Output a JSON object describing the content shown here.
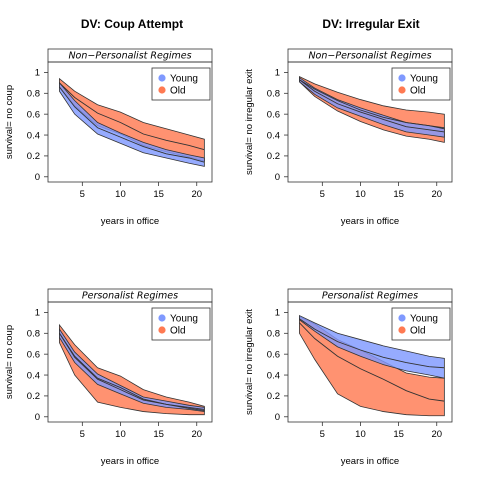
{
  "colors": {
    "young": "#7f99ff",
    "old": "#ff7a52",
    "line": "#333333"
  },
  "column_titles": [
    "DV: Coup Attempt",
    "DV: Irregular Exit"
  ],
  "chart_data": [
    {
      "type": "area",
      "strip": "Non−Personalist Regimes",
      "xlabel": "years in office",
      "ylabel": "survival= no coup",
      "xlim": [
        0.5,
        22
      ],
      "ylim": [
        -0.05,
        1.1
      ],
      "xticks": [
        5,
        10,
        15,
        20
      ],
      "yticks": [
        0,
        0.2,
        0.4,
        0.6,
        0.8,
        1
      ],
      "ytick_labels": [
        "0",
        "0.2",
        "0.4",
        "0.6",
        "0.8",
        "1"
      ],
      "legend": {
        "position": "top-right",
        "entries": [
          "Young",
          "Old"
        ]
      },
      "x": [
        2,
        4,
        7,
        10,
        13,
        16,
        19,
        21
      ],
      "series": [
        {
          "name": "Young",
          "mean": [
            0.86,
            0.67,
            0.47,
            0.38,
            0.29,
            0.22,
            0.18,
            0.14
          ],
          "lower": [
            0.82,
            0.6,
            0.41,
            0.32,
            0.23,
            0.18,
            0.13,
            0.1
          ],
          "upper": [
            0.9,
            0.73,
            0.52,
            0.42,
            0.33,
            0.26,
            0.21,
            0.18
          ]
        },
        {
          "name": "Old",
          "mean": [
            0.9,
            0.76,
            0.61,
            0.52,
            0.41,
            0.35,
            0.3,
            0.26
          ],
          "lower": [
            0.86,
            0.68,
            0.49,
            0.41,
            0.3,
            0.24,
            0.19,
            0.15
          ],
          "upper": [
            0.94,
            0.82,
            0.69,
            0.62,
            0.52,
            0.46,
            0.4,
            0.36
          ]
        }
      ]
    },
    {
      "type": "area",
      "strip": "Non−Personalist Regimes",
      "xlabel": "years in office",
      "ylabel": "survival= no irregular exit",
      "xlim": [
        0.5,
        22
      ],
      "ylim": [
        -0.05,
        1.1
      ],
      "xticks": [
        5,
        10,
        15,
        20
      ],
      "yticks": [
        0,
        0.2,
        0.4,
        0.6,
        0.8,
        1
      ],
      "ytick_labels": [
        "0",
        "0.2",
        "0.4",
        "0.6",
        "0.8",
        "1"
      ],
      "legend": {
        "position": "top-right",
        "entries": [
          "Young",
          "Old"
        ]
      },
      "x": [
        2,
        4,
        7,
        10,
        13,
        16,
        19,
        21
      ],
      "series": [
        {
          "name": "Young",
          "mean": [
            0.93,
            0.82,
            0.7,
            0.62,
            0.55,
            0.48,
            0.45,
            0.43
          ],
          "lower": [
            0.91,
            0.79,
            0.66,
            0.58,
            0.5,
            0.43,
            0.4,
            0.38
          ],
          "upper": [
            0.95,
            0.85,
            0.74,
            0.66,
            0.59,
            0.52,
            0.49,
            0.47
          ]
        },
        {
          "name": "Old",
          "mean": [
            0.93,
            0.84,
            0.73,
            0.64,
            0.57,
            0.52,
            0.49,
            0.46
          ],
          "lower": [
            0.91,
            0.77,
            0.63,
            0.53,
            0.45,
            0.39,
            0.36,
            0.33
          ],
          "upper": [
            0.96,
            0.89,
            0.81,
            0.74,
            0.68,
            0.64,
            0.62,
            0.6
          ]
        }
      ]
    },
    {
      "type": "area",
      "strip": "Personalist Regimes",
      "xlabel": "years in office",
      "ylabel": "survival= no coup",
      "xlim": [
        0.5,
        22
      ],
      "ylim": [
        -0.05,
        1.1
      ],
      "xticks": [
        5,
        10,
        15,
        20
      ],
      "yticks": [
        0,
        0.2,
        0.4,
        0.6,
        0.8,
        1
      ],
      "ytick_labels": [
        "0",
        "0.2",
        "0.4",
        "0.6",
        "0.8",
        "1"
      ],
      "legend": {
        "position": "top-right",
        "entries": [
          "Young",
          "Old"
        ]
      },
      "x": [
        2,
        4,
        7,
        10,
        13,
        16,
        19,
        21
      ],
      "series": [
        {
          "name": "Young",
          "mean": [
            0.8,
            0.57,
            0.36,
            0.26,
            0.16,
            0.12,
            0.09,
            0.07
          ],
          "lower": [
            0.76,
            0.52,
            0.31,
            0.22,
            0.13,
            0.09,
            0.07,
            0.05
          ],
          "upper": [
            0.84,
            0.62,
            0.41,
            0.3,
            0.19,
            0.15,
            0.11,
            0.09
          ]
        },
        {
          "name": "Old",
          "mean": [
            0.8,
            0.58,
            0.37,
            0.28,
            0.17,
            0.12,
            0.08,
            0.06
          ],
          "lower": [
            0.71,
            0.4,
            0.14,
            0.09,
            0.05,
            0.03,
            0.02,
            0.02
          ],
          "upper": [
            0.88,
            0.69,
            0.47,
            0.39,
            0.26,
            0.19,
            0.14,
            0.1
          ]
        }
      ]
    },
    {
      "type": "area",
      "strip": "Personalist Regimes",
      "xlabel": "years in office",
      "ylabel": "survival= no irregular exit",
      "xlim": [
        0.5,
        22
      ],
      "ylim": [
        -0.05,
        1.1
      ],
      "xticks": [
        5,
        10,
        15,
        20
      ],
      "yticks": [
        0,
        0.2,
        0.4,
        0.6,
        0.8,
        1
      ],
      "ytick_labels": [
        "0",
        "0.2",
        "0.4",
        "0.6",
        "0.8",
        "1"
      ],
      "legend": {
        "position": "top-right",
        "entries": [
          "Young",
          "Old"
        ]
      },
      "x": [
        2,
        4,
        7,
        10,
        13,
        16,
        19,
        21
      ],
      "series": [
        {
          "name": "Young",
          "mean": [
            0.94,
            0.84,
            0.72,
            0.64,
            0.57,
            0.52,
            0.48,
            0.47
          ],
          "lower": [
            0.93,
            0.82,
            0.67,
            0.58,
            0.5,
            0.44,
            0.4,
            0.37
          ],
          "upper": [
            0.97,
            0.9,
            0.8,
            0.74,
            0.68,
            0.63,
            0.58,
            0.56
          ]
        },
        {
          "name": "Old",
          "mean": [
            0.9,
            0.75,
            0.58,
            0.46,
            0.36,
            0.25,
            0.17,
            0.15
          ],
          "lower": [
            0.8,
            0.55,
            0.22,
            0.1,
            0.05,
            0.02,
            0.01,
            0.01
          ],
          "upper": [
            0.96,
            0.89,
            0.74,
            0.64,
            0.53,
            0.42,
            0.38,
            0.37
          ]
        }
      ]
    }
  ]
}
